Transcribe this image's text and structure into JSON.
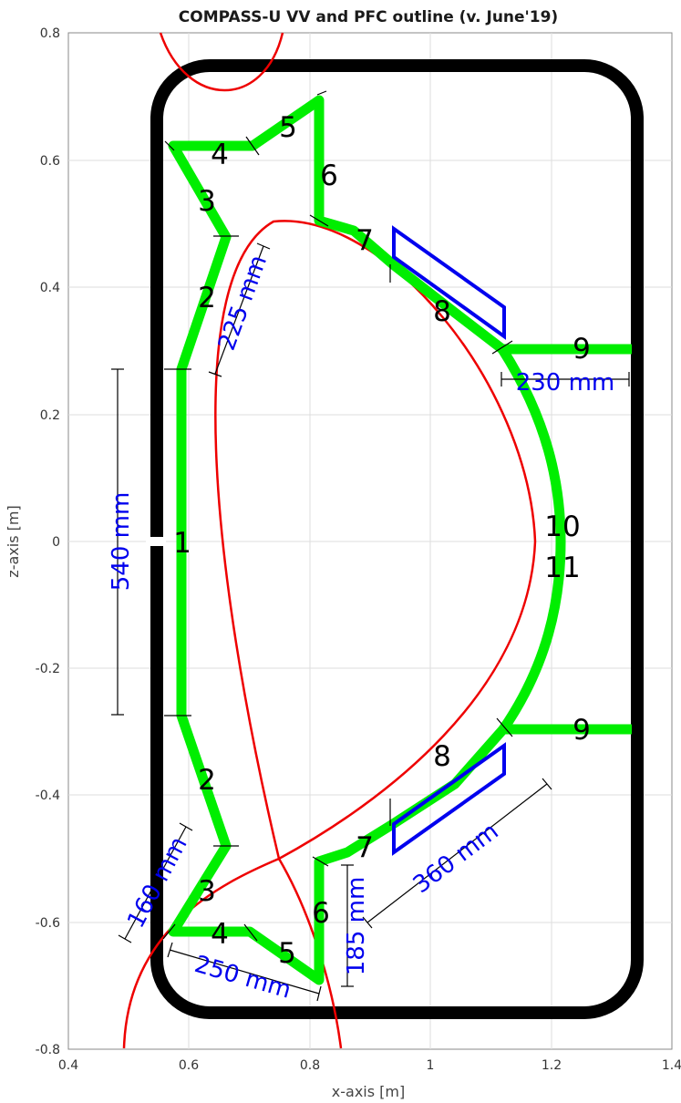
{
  "title": "COMPASS-U VV and PFC outline (v. June'19)",
  "xlabel": "x-axis [m]",
  "ylabel": "z-axis [m]",
  "x_ticks": [
    "0.4",
    "0.6",
    "0.8",
    "1",
    "1.2",
    "1.4"
  ],
  "y_ticks": [
    "0.8",
    "0.6",
    "0.4",
    "0.2",
    "0",
    "-0.2",
    "-0.4",
    "-0.6",
    "-0.8"
  ],
  "segment_labels": {
    "s1": "1",
    "s2_top": "2",
    "s2_bot": "2",
    "s3_top": "3",
    "s3_bot": "3",
    "s4_top": "4",
    "s4_bot": "4",
    "s5_top": "5",
    "s5_bot": "5",
    "s6_top": "6",
    "s6_bot": "6",
    "s7_top": "7",
    "s7_bot": "7",
    "s8_top": "8",
    "s8_bot": "8",
    "s9_top": "9",
    "s9_bot": "9",
    "s10": "10",
    "s11": "11"
  },
  "dimensions": {
    "d540": "540 mm",
    "d225": "225 mm",
    "d230": "230 mm",
    "d160": "160 mm",
    "d250": "250 mm",
    "d185": "185 mm",
    "d360": "360 mm"
  },
  "colors": {
    "vessel": "#000000",
    "pfc": "#00ee00",
    "separatrix": "#ee0000",
    "coils": "#0000ee",
    "dimension": "#0000ee"
  }
}
